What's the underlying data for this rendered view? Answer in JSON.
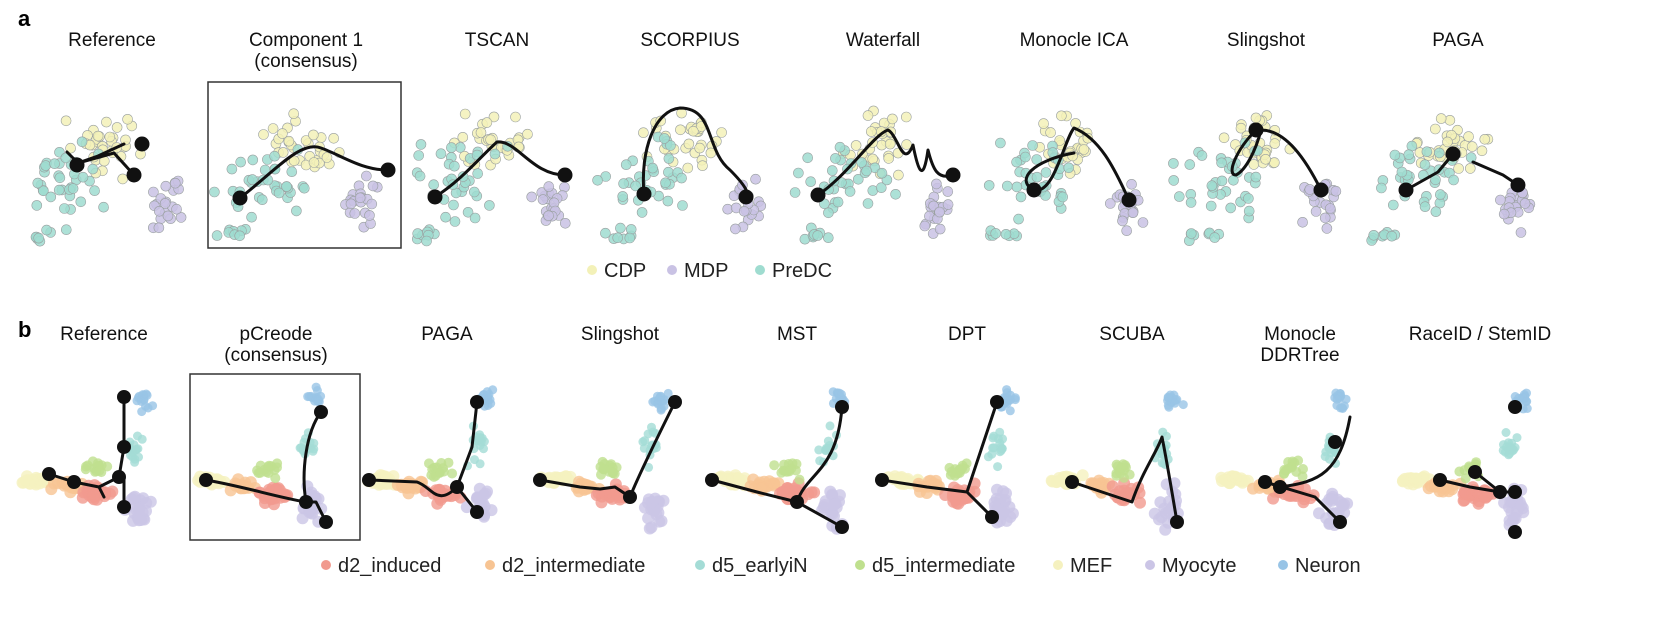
{
  "panels": [
    {
      "letter": "a",
      "titles": [
        [
          "Reference"
        ],
        [
          "Component 1",
          "(consensus)"
        ],
        [
          "TSCAN"
        ],
        [
          "SCORPIUS"
        ],
        [
          "Waterfall"
        ],
        [
          "Monocle ICA"
        ],
        [
          "Slingshot"
        ],
        [
          "PAGA"
        ]
      ],
      "highlighted_index": 1,
      "legend": [
        {
          "label": "CDP",
          "color": "#f3f1b8"
        },
        {
          "label": "MDP",
          "color": "#c9c2e4"
        },
        {
          "label": "PreDC",
          "color": "#9fdcd0"
        }
      ]
    },
    {
      "letter": "b",
      "titles": [
        [
          "Reference"
        ],
        [
          "pCreode",
          "(consensus)"
        ],
        [
          "PAGA"
        ],
        [
          "Slingshot"
        ],
        [
          "MST"
        ],
        [
          "DPT"
        ],
        [
          "SCUBA"
        ],
        [
          "Monocle",
          "DDRTree"
        ],
        [
          "RaceID / StemID"
        ]
      ],
      "highlighted_index": 1,
      "legend": [
        {
          "label": "d2_induced",
          "color": "#f19a8e"
        },
        {
          "label": "d2_intermediate",
          "color": "#f7c493"
        },
        {
          "label": "d5_earlyiN",
          "color": "#a4dcd6"
        },
        {
          "label": "d5_intermediate",
          "color": "#bfe08e"
        },
        {
          "label": "MEF",
          "color": "#f5f1bf"
        },
        {
          "label": "Myocyte",
          "color": "#cbc5e6"
        },
        {
          "label": "Neuron",
          "color": "#98c4e6"
        }
      ]
    }
  ]
}
